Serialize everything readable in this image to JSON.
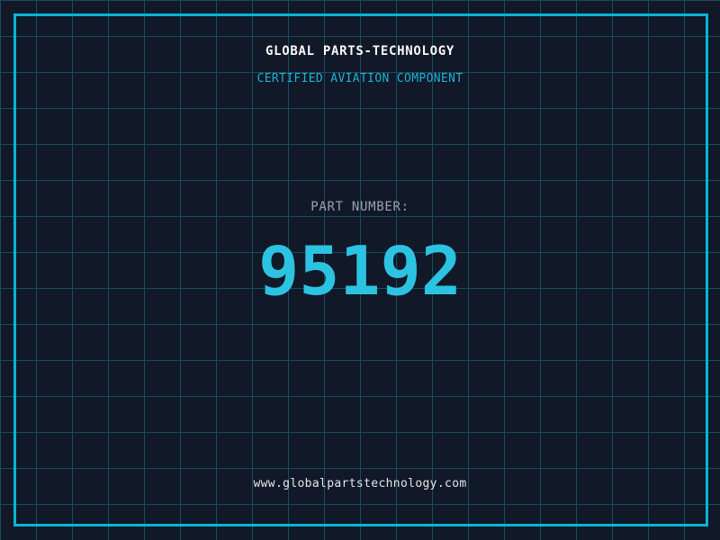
{
  "header": {
    "title": "GLOBAL PARTS-TECHNOLOGY",
    "subtitle": "CERTIFIED AVIATION COMPONENT"
  },
  "part": {
    "label": "PART NUMBER:",
    "number": "95192"
  },
  "footer": {
    "website": "www.globalpartstechnology.com"
  },
  "colors": {
    "background": "#111827",
    "grid_line": "#164e63",
    "frame": "#06b6d4",
    "title": "#f9fafb",
    "subtitle": "#1fb2d3",
    "part_label": "#9ca3af",
    "part_number": "#2cc3e2",
    "website": "#e5e7eb"
  }
}
